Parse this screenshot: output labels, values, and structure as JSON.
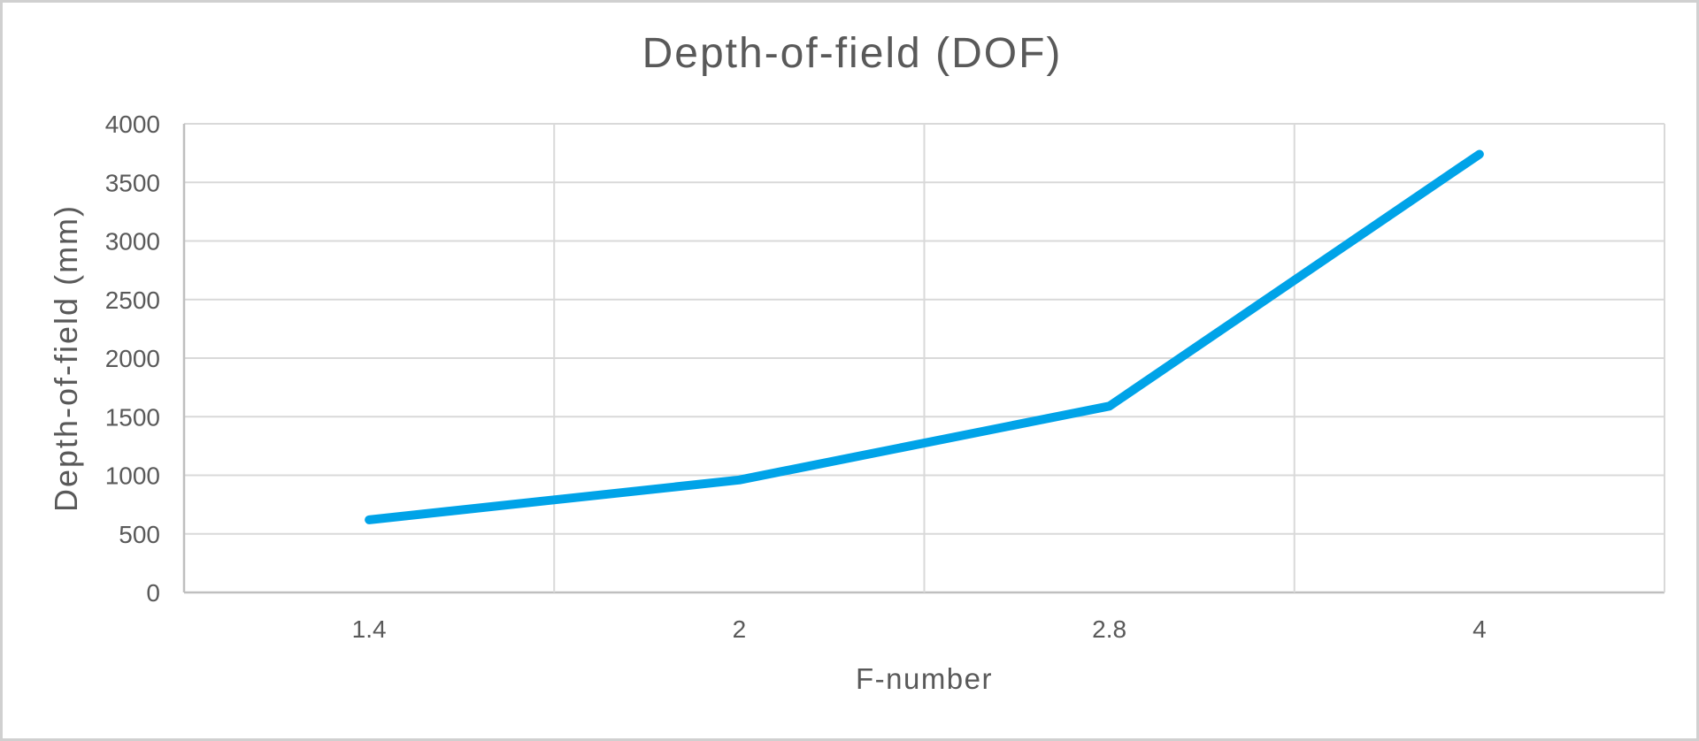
{
  "chart_data": {
    "type": "line",
    "title": "Depth-of-field (DOF)",
    "xlabel": "F-number",
    "ylabel": "Depth-of-field (mm)",
    "categories": [
      "1.4",
      "2",
      "2.8",
      "4"
    ],
    "series": [
      {
        "name": "DOF",
        "values": [
          620,
          960,
          1590,
          3740
        ]
      }
    ],
    "ylim": [
      0,
      4000
    ],
    "yticks": [
      0,
      500,
      1000,
      1500,
      2000,
      2500,
      3000,
      3500,
      4000
    ],
    "grid": true,
    "legend_position": "none",
    "colors": {
      "line": "#00A3E8",
      "gridline": "#D9D9D9",
      "axis_line": "#BFBFBF",
      "text": "#595959",
      "background": "#FFFFFF",
      "frame_border": "#D0D0D0"
    }
  }
}
